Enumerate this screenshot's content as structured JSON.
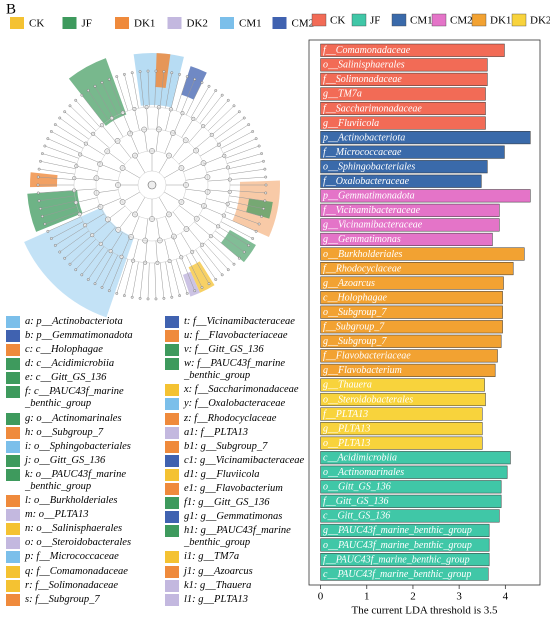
{
  "panel_label": "B",
  "cladogram": {
    "legend": [
      {
        "name": "CK",
        "color": "#f4c232"
      },
      {
        "name": "JF",
        "color": "#3e9a5d"
      },
      {
        "name": "DK1",
        "color": "#ef8a3c"
      },
      {
        "name": "DK2",
        "color": "#c3b8df"
      },
      {
        "name": "CM1",
        "color": "#7bbfea"
      },
      {
        "name": "CM2",
        "color": "#4062b0"
      }
    ]
  },
  "key": {
    "items": [
      {
        "label": "a: p__Actinobacteriota",
        "color": "#7bbfea"
      },
      {
        "label": "b: p__Gemmatimonadota",
        "color": "#4062b0"
      },
      {
        "label": "c: c__Holophagae",
        "color": "#ef8a3c"
      },
      {
        "label": "d: c__Acidimicrobiia",
        "color": "#3e9a5d"
      },
      {
        "label": "e: c__Gitt_GS_136",
        "color": "#3e9a5d"
      },
      {
        "label": "f: c__PAUC43f_marine _benthic_group",
        "color": "#3e9a5d"
      },
      {
        "label": "g: o__Actinomarinales",
        "color": "#3e9a5d"
      },
      {
        "label": "h: o__Subgroup_7",
        "color": "#ef8a3c"
      },
      {
        "label": "i: o__Sphingobacteriales",
        "color": "#7bbfea"
      },
      {
        "label": "j: o__Gitt_GS_136",
        "color": "#3e9a5d"
      },
      {
        "label": "k: o__PAUC43f_marine _benthic_group",
        "color": "#3e9a5d"
      },
      {
        "label": "l: o__Burkholderiales",
        "color": "#ef8a3c"
      },
      {
        "label": "m: o__PLTA13",
        "color": "#c3b8df"
      },
      {
        "label": "n: o__Salinisphaerales",
        "color": "#f4c232"
      },
      {
        "label": "o: o__Steroidobacterales",
        "color": "#c3b8df"
      },
      {
        "label": "p: f__Micrococcaceae",
        "color": "#7bbfea"
      },
      {
        "label": "q: f__Comamonadaceae",
        "color": "#f4c232"
      },
      {
        "label": "r: f__Solimonadaceae",
        "color": "#f4c232"
      },
      {
        "label": "s: f__Subgroup_7",
        "color": "#ef8a3c"
      },
      {
        "label": "t: f__Vicinamibacteraceae",
        "color": "#4062b0"
      },
      {
        "label": "u: f__Flavobacteriaceae",
        "color": "#ef8a3c"
      },
      {
        "label": "v: f__Gitt_GS_136",
        "color": "#3e9a5d"
      },
      {
        "label": "w: f__PAUC43f_marine _benthic_group",
        "color": "#3e9a5d"
      },
      {
        "label": "x: f__Saccharimonadaceae",
        "color": "#f4c232"
      },
      {
        "label": "y: f__Oxalobacteraceae",
        "color": "#7bbfea"
      },
      {
        "label": "z: f__Rhodocyclaceae",
        "color": "#ef8a3c"
      },
      {
        "label": "a1: f__PLTA13",
        "color": "#c3b8df"
      },
      {
        "label": "b1: g__Subgroup_7",
        "color": "#ef8a3c"
      },
      {
        "label": "c1: g__Vicinamibacteraceae",
        "color": "#4062b0"
      },
      {
        "label": "d1: g__Fluviicola",
        "color": "#f4c232"
      },
      {
        "label": "e1: g__Flavobacterium",
        "color": "#ef8a3c"
      },
      {
        "label": "f1: g__Gitt_GS_136",
        "color": "#3e9a5d"
      },
      {
        "label": "g1: g__Gemmatimonas",
        "color": "#4062b0"
      },
      {
        "label": "h1: g__PAUC43f_marine _benthic_group",
        "color": "#3e9a5d"
      },
      {
        "label": "i1: g__TM7a",
        "color": "#f4c232"
      },
      {
        "label": "j1: g__Azoarcus",
        "color": "#ef8a3c"
      },
      {
        "label": "k1: g__Thauera",
        "color": "#c3b8df"
      },
      {
        "label": "l1: g__PLTA13",
        "color": "#c3b8df"
      }
    ]
  },
  "chart_data": {
    "type": "bar",
    "orientation": "horizontal",
    "xlabel": "The current LDA threshold is 3.5",
    "xlim": [
      -0.25,
      4.75
    ],
    "xticks": [
      0,
      1,
      2,
      3,
      4
    ],
    "legend": [
      "CK",
      "JF",
      "CM1",
      "CM2",
      "DK1",
      "DK2"
    ],
    "series": [
      {
        "name": "CK",
        "color": "#f26b56",
        "categories": [
          "f__Comamonadaceae",
          "o__Salinisphaerales",
          "f__Solimonadaceae",
          "g__TM7a",
          "f__Saccharimonadaceae",
          "g__Fluviicola"
        ],
        "values": [
          3.98,
          3.61,
          3.61,
          3.57,
          3.57,
          3.57
        ]
      },
      {
        "name": "CM1",
        "color": "#3a6aaa",
        "categories": [
          "p__Actinobacteriota",
          "f__Micrococcaceae",
          "o__Sphingobacteriales",
          "f__Oxalobacteraceae"
        ],
        "values": [
          4.54,
          3.98,
          3.61,
          3.48
        ]
      },
      {
        "name": "CM2",
        "color": "#e474c8",
        "categories": [
          "p__Gemmatimonadota",
          "f__Vicinamibacteraceae",
          "g__Vicinamibacteraceae",
          "g__Gemmatimonas"
        ],
        "values": [
          4.54,
          3.87,
          3.87,
          3.72
        ]
      },
      {
        "name": "DK1",
        "color": "#f2a232",
        "categories": [
          "o__Burkholderiales",
          "f__Rhodocyclaceae",
          "g__Azoarcus",
          "c__Holophagae",
          "o__Subgroup_7",
          "f__Subgroup_7",
          "g__Subgroup_7",
          "f__Flavobacteriaceae",
          "g__Flavobacterium"
        ],
        "values": [
          4.41,
          4.17,
          3.96,
          3.94,
          3.94,
          3.94,
          3.91,
          3.83,
          3.78
        ]
      },
      {
        "name": "DK2",
        "color": "#f8d33c",
        "categories": [
          "g__Thauera",
          "o__Steroidobacterales",
          "f__PLTA13",
          "g__PLTA13",
          "o__PLTA13"
        ],
        "values": [
          3.55,
          3.57,
          3.5,
          3.5,
          3.5
        ]
      },
      {
        "name": "JF",
        "color": "#40c7a7",
        "categories": [
          "c__Acidimicrobiia",
          "o__Actinomarinales",
          "o__Gitt_GS_136",
          "f__Gitt_GS_136",
          "c__Gitt_GS_136",
          "g__PAUC43f_marine_benthic_group",
          "o__PAUC43f_marine_benthic_group",
          "f__PAUC43f_marine_benthic_group",
          "c__PAUC43f_marine_benthic_group"
        ],
        "values": [
          4.11,
          4.04,
          3.91,
          3.91,
          3.87,
          3.65,
          3.65,
          3.65,
          3.63
        ]
      }
    ]
  }
}
